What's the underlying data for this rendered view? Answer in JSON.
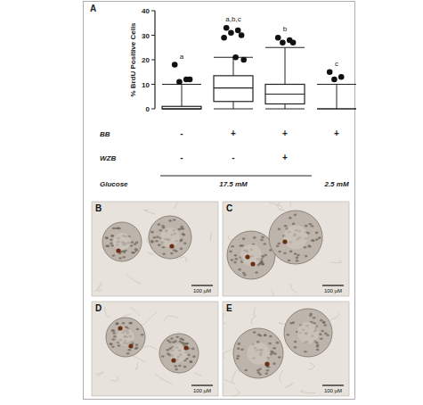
{
  "chart_data": {
    "type": "box",
    "panel_label": "A",
    "y_label": "% BrdU Positive Cells",
    "categories": [
      null,
      null,
      null,
      null
    ],
    "ylim": [
      0,
      40
    ],
    "yticks": [
      0,
      10,
      20,
      30,
      40
    ],
    "boxes": [
      {
        "min": 0,
        "q1": 0,
        "median": 0,
        "q3": 1,
        "max": 10,
        "outliers": [
          18,
          12,
          11,
          12
        ]
      },
      {
        "min": 0,
        "q1": 3,
        "median": 8.5,
        "q3": 13.5,
        "max": 21,
        "outliers": [
          33,
          32,
          31,
          30,
          29,
          21,
          20
        ]
      },
      {
        "min": 0,
        "q1": 2,
        "median": 6,
        "q3": 10,
        "max": 25,
        "outliers": [
          29,
          28,
          27,
          27
        ]
      },
      {
        "min": 0,
        "q1": 0,
        "median": 0,
        "q3": 0,
        "max": 10,
        "outliers": [
          15,
          13,
          12
        ]
      }
    ],
    "annotations": [
      "a",
      "a,b,c",
      "b",
      "c"
    ],
    "conditions": [
      {
        "label": "BB",
        "values": [
          "-",
          "+",
          "+",
          "+"
        ]
      },
      {
        "label": "WZB",
        "values": [
          "-",
          "-",
          "+",
          null
        ]
      }
    ],
    "glucose": {
      "label": "Glucose",
      "groups": [
        {
          "label": "17.5 mM",
          "size": 3
        },
        {
          "label": "2.5 mM",
          "size": 1
        }
      ]
    },
    "images": [
      {
        "label": "B",
        "scale_bar": "100 µM"
      },
      {
        "label": "C",
        "scale_bar": "100 µM"
      },
      {
        "label": "D",
        "scale_bar": "100 µM"
      },
      {
        "label": "E",
        "scale_bar": "100 µM"
      }
    ]
  }
}
